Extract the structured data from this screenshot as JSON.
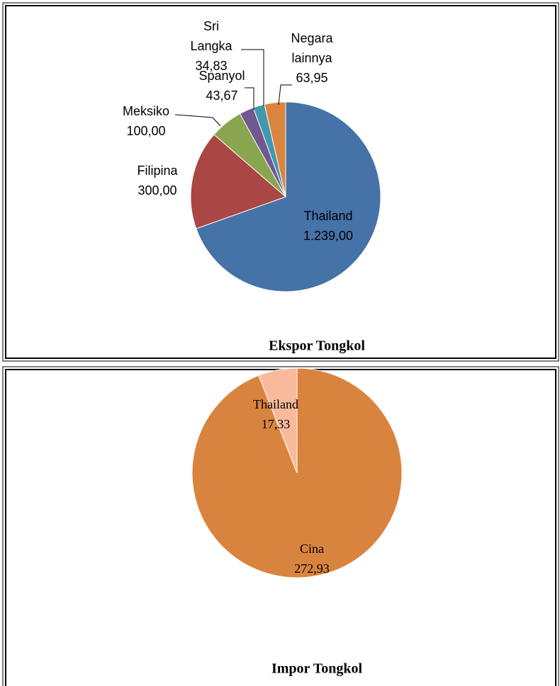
{
  "chart_data": [
    {
      "type": "pie",
      "title": "Ekspor Tongkol",
      "categories": [
        "Thailand",
        "Filipina",
        "Meksiko",
        "Spanyol",
        "Sri Langka",
        "Negara lainnya"
      ],
      "values": [
        1239,
        300,
        100,
        43.67,
        34.83,
        63.95
      ],
      "value_labels": [
        "1.239,00",
        "300,00",
        "100,00",
        "43,67",
        "34,83",
        "63,95"
      ],
      "colors": [
        "#4572a7",
        "#aa4643",
        "#89a54e",
        "#71588f",
        "#4198af",
        "#db843d"
      ]
    },
    {
      "type": "pie",
      "title": "Impor Tongkol",
      "categories": [
        "Cina",
        "Thailand"
      ],
      "values": [
        272.93,
        17.33
      ],
      "value_labels": [
        "272,93",
        "17,33"
      ],
      "colors": [
        "#d9843e",
        "#f9b99a"
      ]
    }
  ]
}
